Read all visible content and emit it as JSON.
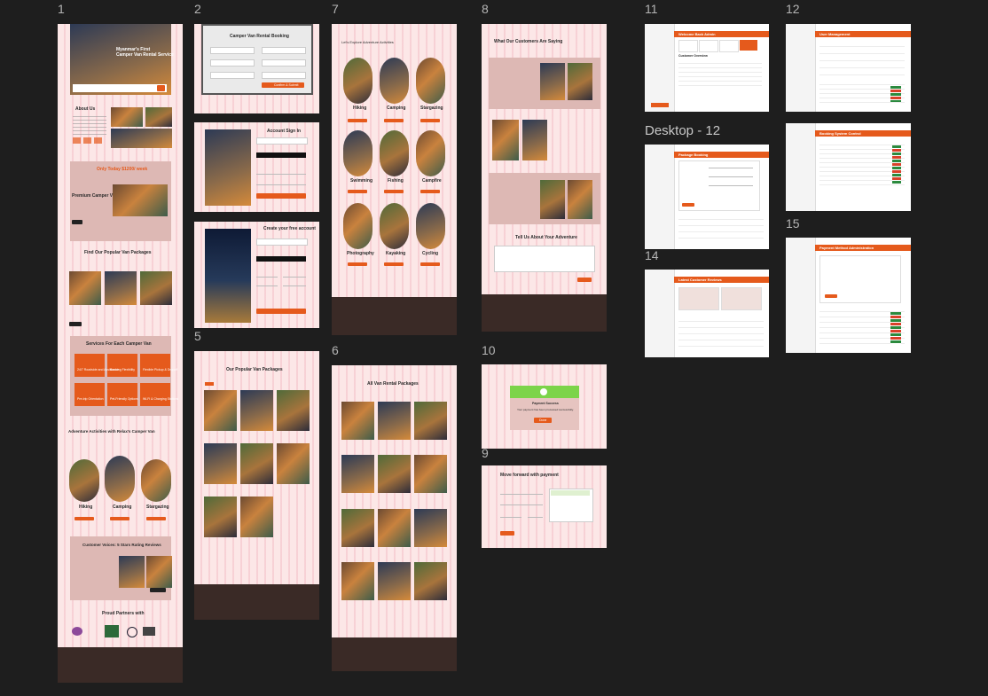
{
  "canvas": {
    "frame_labels": [
      "1",
      "2",
      "7",
      "8",
      "11",
      "12",
      "Desktop - 12",
      "5",
      "6",
      "10",
      "9",
      "14",
      "15"
    ]
  },
  "frame1": {
    "hero_title": "Myanmar's First",
    "hero_subtitle": "Camper Van Rental Service",
    "about_title": "About Us",
    "offer_title": "Only Today $1200/ week",
    "premium_title": "Premium Camper Van",
    "packages_title": "Find Our Popular Van Packages",
    "services_title": "Services For Each Camper Van",
    "services": [
      "24/7 Roadside and Assistance",
      "Booking Flexibility",
      "Flexible Pickup & Dropoff",
      "Pre-trip Orientation",
      "Pet-Friendly Options",
      "Wi-Fi & Charging Stations"
    ],
    "activities_title": "Adventure Activities with Relax's Camper Van",
    "activities": [
      "Hiking",
      "Camping",
      "Stargazing"
    ],
    "reviews_title": "Customer Voices: 5 Stars Rating Reviews",
    "partners_title": "Proud Partners with"
  },
  "frame2": {
    "title": "Camper Van Rental Booking",
    "submit": "Confirm & Submit"
  },
  "frame3": {
    "title": "Account Sign In",
    "google": "Continue with Google",
    "apple": "Continue with Apple",
    "submit": "Sign In"
  },
  "frame4": {
    "title": "Create your free account",
    "submit": "Create an Account"
  },
  "frame5": {
    "title": "Our Popular Van Packages"
  },
  "frame6": {
    "title": "All Van Rental Packages"
  },
  "frame7": {
    "title": "Let's Explore Adventure Activities",
    "activities": [
      "Hiking",
      "Camping",
      "Stargazing",
      "Swimming",
      "Fishing",
      "Campfire",
      "Photography",
      "Kayaking",
      "Cycling"
    ]
  },
  "frame8": {
    "title": "What Our Customers Are Saying",
    "form_title": "Tell Us About Your Adventure",
    "submit": "Submit"
  },
  "frame10": {
    "title": "Payment Success",
    "message": "Your payment has been processed successfully.",
    "button": "Done"
  },
  "frame9": {
    "title": "Move forward with payment",
    "button": "Continue"
  },
  "frame11": {
    "header": "Welcome Back Admin",
    "table_title": "Customer Overview"
  },
  "frame12": {
    "header": "User Management"
  },
  "desktop12": {
    "header": "Package Booking"
  },
  "frame13": {
    "header": "Booking System Control"
  },
  "frame14": {
    "header": "Latest Customer Reviews"
  },
  "frame15": {
    "header": "Payment Method Administration"
  },
  "colors": {
    "accent": "#e55a1c",
    "dark": "#3a2a26",
    "canvas": "#1e1e1e",
    "grid": "#f6c9ce"
  }
}
